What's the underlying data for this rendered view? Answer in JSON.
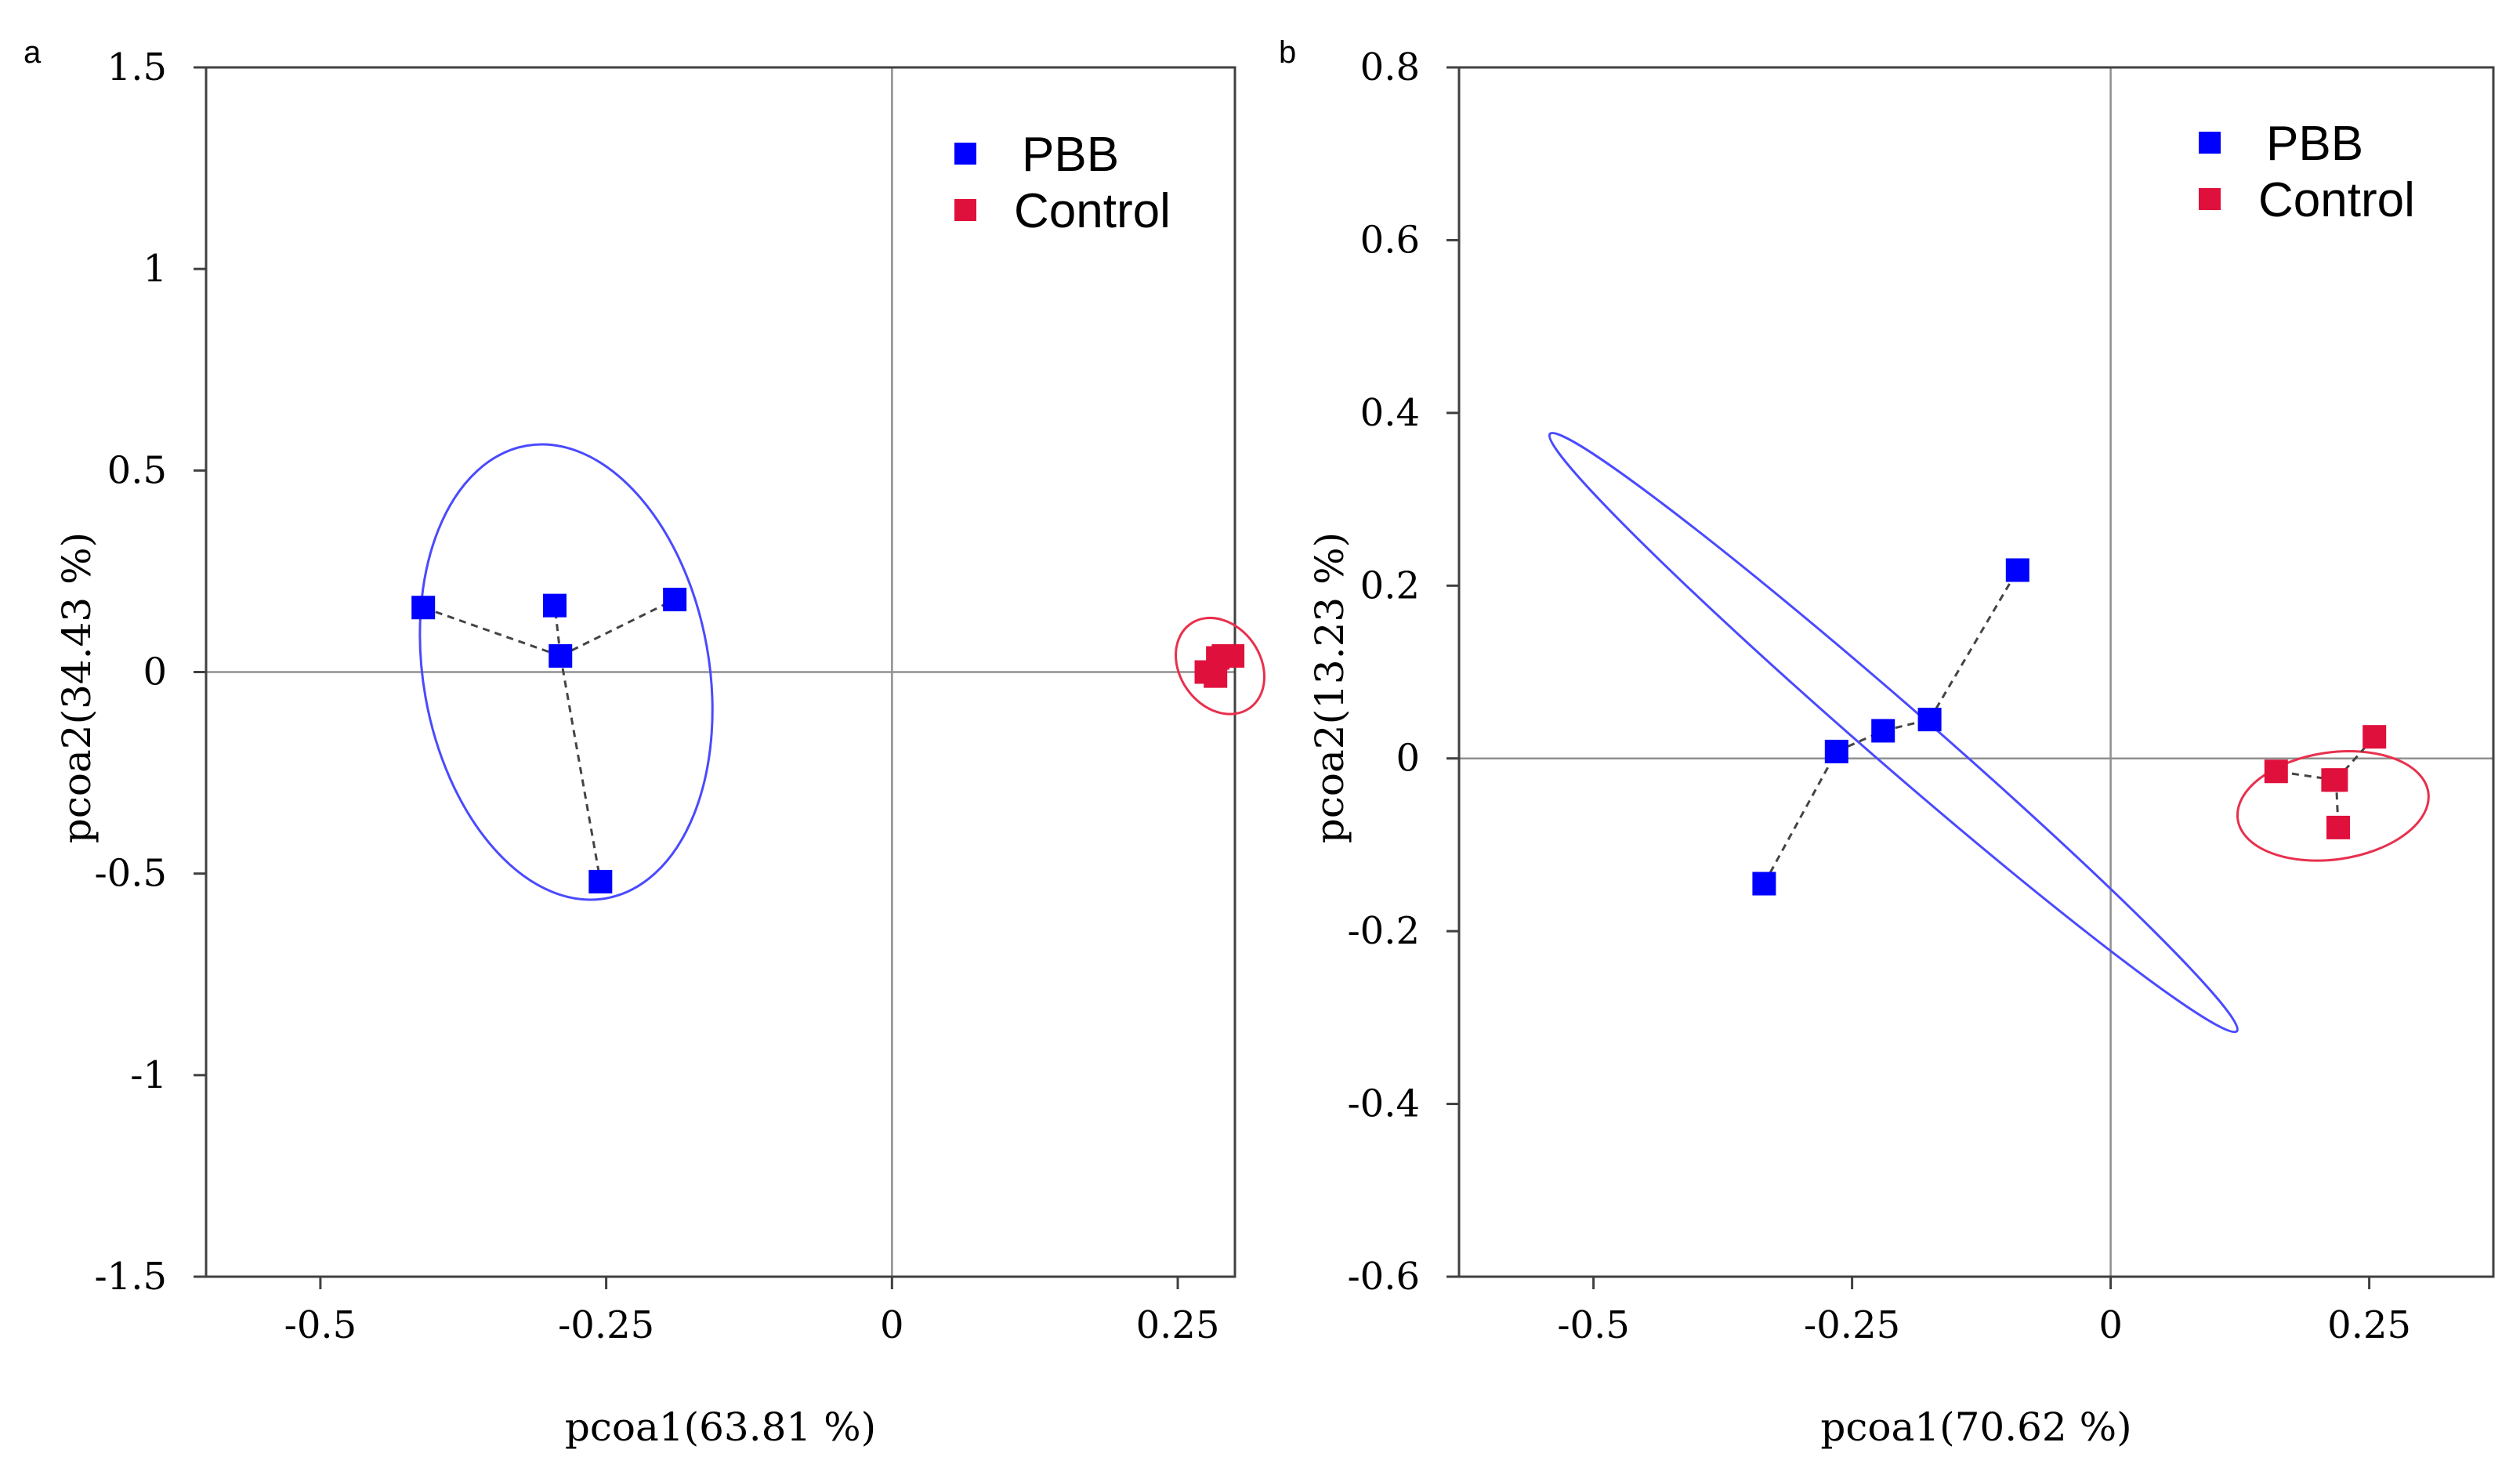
{
  "figure": {
    "colors": {
      "PBB": "#0000ff",
      "Control": "#e0103c",
      "axis": "#404040",
      "zero_line": "#909090",
      "ellipse_PBB": "#4a4aff",
      "ellipse_Control": "#e8304c",
      "link": "#444444"
    }
  },
  "chart_data": [
    {
      "panel_label": "a",
      "type": "scatter",
      "title": "",
      "xlabel": "pcoa1(63.81 %)",
      "ylabel": "pcoa2(34.43 %)",
      "xlim": [
        -0.6,
        0.3
      ],
      "ylim": [
        -1.5,
        1.5
      ],
      "xticks": [
        -0.5,
        -0.25,
        0,
        0.25
      ],
      "xtick_labels": [
        "-0.5",
        "-0.25",
        "0",
        "0.25"
      ],
      "yticks": [
        -1.5,
        -1,
        -0.5,
        0,
        0.5,
        1,
        1.5
      ],
      "ytick_labels": [
        "-1.5",
        "-1",
        "-0.5",
        "0",
        "0.5",
        "1",
        "1.5"
      ],
      "zero_lines": true,
      "legend_position": "top-right",
      "series": [
        {
          "name": "PBB",
          "x": [
            -0.41,
            -0.295,
            -0.19,
            -0.29,
            -0.255
          ],
          "y": [
            0.16,
            0.165,
            0.18,
            0.04,
            -0.52
          ],
          "centroid_index": 3,
          "ellipse": {
            "cx": -0.285,
            "cy": 0.0,
            "rx": 0.125,
            "ry": 0.57,
            "angle": -10
          }
        },
        {
          "name": "Control",
          "x": [
            0.275,
            0.285,
            0.29,
            0.298,
            0.283
          ],
          "y": [
            0.0,
            0.035,
            0.04,
            0.04,
            -0.01
          ],
          "centroid_index": 4,
          "ellipse": {
            "cx": 0.287,
            "cy": 0.015,
            "rx": 0.045,
            "ry": 0.1,
            "angle": 55
          }
        }
      ]
    },
    {
      "panel_label": "b",
      "type": "scatter",
      "title": "",
      "xlabel": "pcoa1(70.62 %)",
      "ylabel": "pcoa2(13.23 %)",
      "xlim": [
        -0.63,
        0.37
      ],
      "ylim": [
        -0.6,
        0.8
      ],
      "xticks": [
        -0.5,
        -0.25,
        0,
        0.25
      ],
      "xtick_labels": [
        "-0.5",
        "-0.25",
        "0",
        "0.25"
      ],
      "yticks": [
        -0.6,
        -0.4,
        -0.2,
        0,
        0.2,
        0.4,
        0.6,
        0.8
      ],
      "ytick_labels": [
        "-0.6",
        "-0.4",
        "-0.2",
        "0",
        "0.2",
        "0.4",
        "0.6",
        "0.8"
      ],
      "zero_lines": true,
      "legend_position": "top-right",
      "series": [
        {
          "name": "PBB",
          "x": [
            -0.335,
            -0.265,
            -0.22,
            -0.175,
            -0.09
          ],
          "y": [
            -0.145,
            0.008,
            0.032,
            0.045,
            0.218
          ],
          "chain": true,
          "ellipse": {
            "cx": -0.21,
            "cy": 0.03,
            "rx": 0.44,
            "ry": 0.035,
            "angle": 41
          }
        },
        {
          "name": "Control",
          "x": [
            0.16,
            0.255,
            0.22,
            0.215,
            0.218
          ],
          "y": [
            -0.015,
            0.025,
            -0.08,
            -0.025,
            -0.025
          ],
          "centroid_index": 4,
          "ellipse": {
            "cx": 0.215,
            "cy": -0.055,
            "rx": 0.093,
            "ry": 0.062,
            "angle": -8
          }
        }
      ]
    }
  ]
}
